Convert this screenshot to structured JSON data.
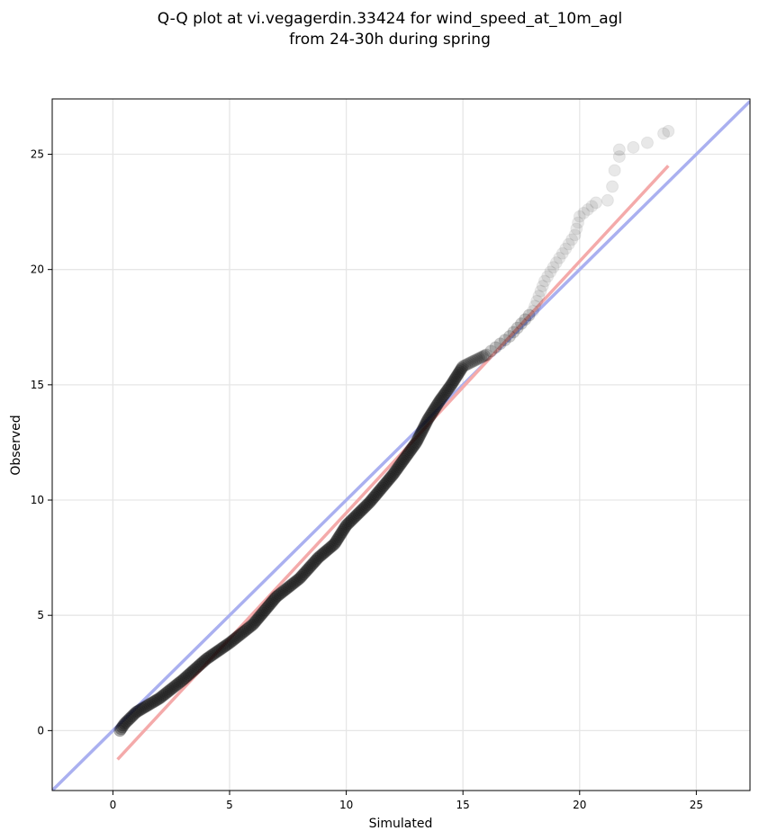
{
  "chart_data": {
    "type": "scatter",
    "title_line1": "Q-Q plot at vi.vegagerdin.33424 for wind_speed_at_10m_agl",
    "title_line2": "from 24-30h during spring",
    "xlabel": "Simulated",
    "ylabel": "Observed",
    "xlim": [
      -2.6,
      27.3
    ],
    "ylim": [
      -2.6,
      27.4
    ],
    "xticks": [
      0,
      5,
      10,
      15,
      20,
      25
    ],
    "yticks": [
      0,
      5,
      10,
      15,
      20,
      25
    ],
    "grid": true,
    "identity_line": {
      "color": "#aab0f0",
      "from": [
        -2.6,
        -2.6
      ],
      "to": [
        27.3,
        27.3
      ]
    },
    "fit_line": {
      "color": "#f4aaaa",
      "from": [
        0.2,
        -1.25
      ],
      "to": [
        23.8,
        24.5
      ]
    },
    "point_color": "#000000",
    "anchors": [
      [
        0.3,
        0.0
      ],
      [
        0.5,
        0.3
      ],
      [
        1.0,
        0.8
      ],
      [
        2.0,
        1.4
      ],
      [
        3.0,
        2.2
      ],
      [
        4.0,
        3.1
      ],
      [
        5.0,
        3.8
      ],
      [
        6.0,
        4.6
      ],
      [
        7.0,
        5.8
      ],
      [
        8.0,
        6.6
      ],
      [
        8.8,
        7.5
      ],
      [
        9.5,
        8.1
      ],
      [
        10.0,
        8.9
      ],
      [
        11.0,
        9.9
      ],
      [
        12.0,
        11.1
      ],
      [
        13.0,
        12.5
      ],
      [
        13.5,
        13.5
      ],
      [
        14.0,
        14.3
      ],
      [
        14.5,
        15.0
      ],
      [
        15.0,
        15.8
      ],
      [
        16.0,
        16.3
      ],
      [
        17.0,
        17.1
      ],
      [
        18.0,
        18.2
      ],
      [
        18.5,
        19.5
      ],
      [
        19.0,
        20.3
      ],
      [
        19.8,
        21.5
      ],
      [
        20.0,
        22.3
      ],
      [
        20.7,
        22.9
      ],
      [
        21.3,
        23.0
      ],
      [
        21.5,
        24.3
      ],
      [
        21.7,
        25.0
      ],
      [
        22.3,
        25.3
      ],
      [
        22.9,
        25.5
      ],
      [
        23.6,
        25.9
      ],
      [
        23.8,
        26.0
      ]
    ],
    "tail_points": [
      [
        20.7,
        22.9
      ],
      [
        21.2,
        23.0
      ],
      [
        21.4,
        23.6
      ],
      [
        21.5,
        24.3
      ],
      [
        21.7,
        24.9
      ],
      [
        21.7,
        25.2
      ],
      [
        22.3,
        25.3
      ],
      [
        22.9,
        25.5
      ],
      [
        23.6,
        25.9
      ],
      [
        23.8,
        26.0
      ]
    ]
  }
}
